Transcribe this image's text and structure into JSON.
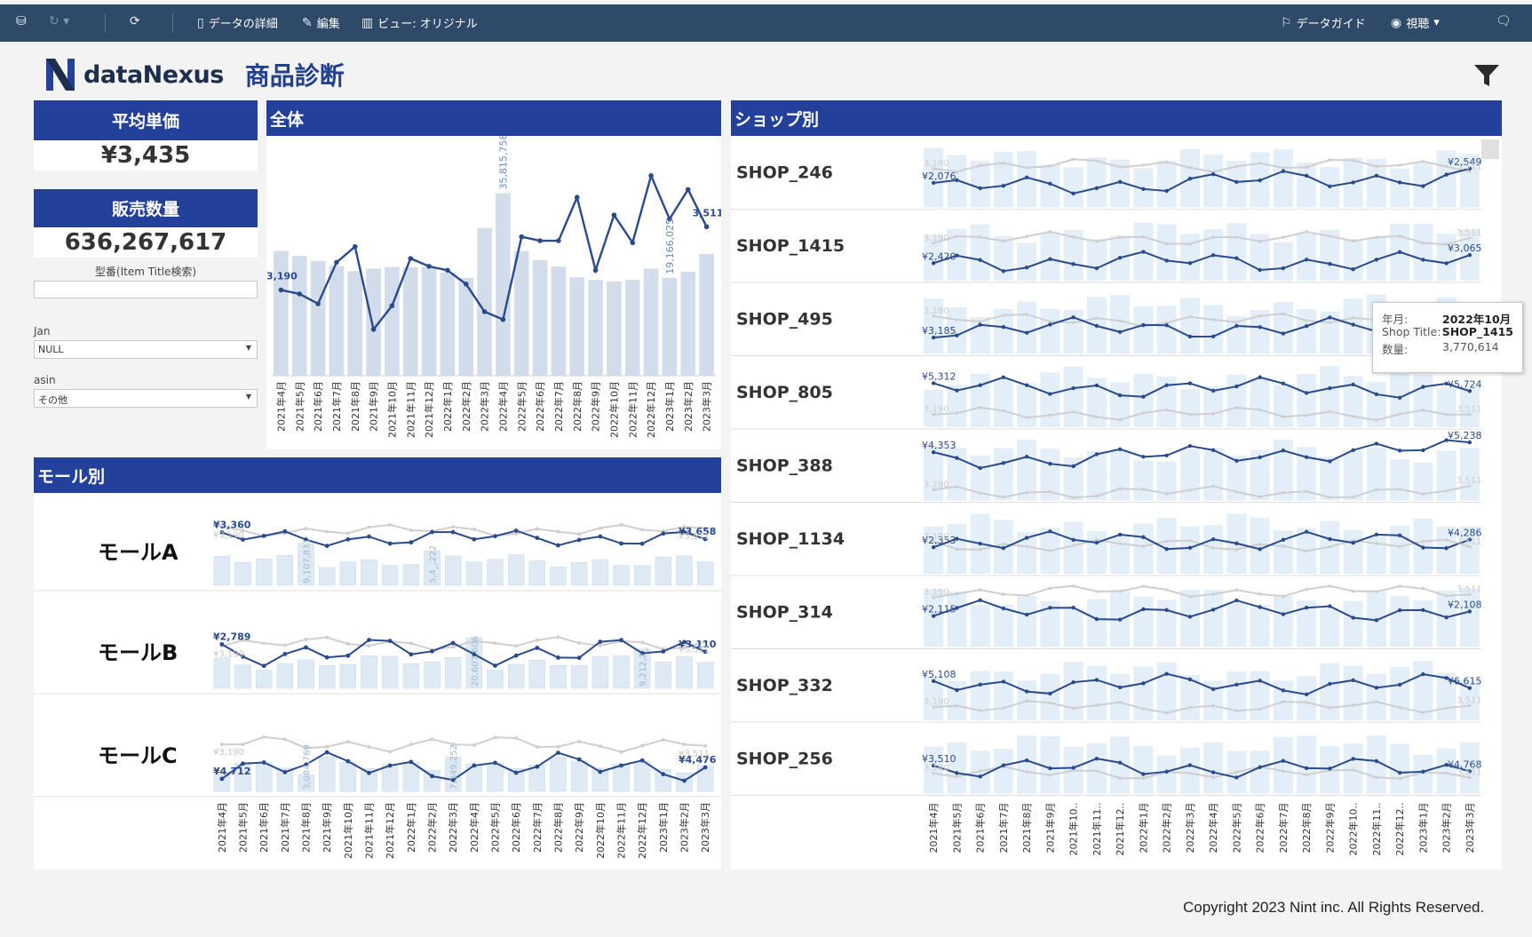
{
  "toolbar": {
    "data_details": "データの詳細",
    "edit": "編集",
    "view": "ビュー: オリジナル",
    "data_guide": "データガイド",
    "watch": "視聴"
  },
  "app": {
    "brand": "dataNexus",
    "page_title": "商品診断"
  },
  "kpi": {
    "avg_price_label": "平均単価",
    "avg_price_value": "¥3,435",
    "qty_label": "販売数量",
    "qty_value": "636,267,617"
  },
  "filters": {
    "search_label": "型番(Item Title検索)",
    "search_value": "",
    "jan_label": "Jan",
    "jan_value": "NULL",
    "asin_label": "asin",
    "asin_value": "その他"
  },
  "sections": {
    "overall": "全体",
    "mall": "モール別",
    "shop": "ショップ別"
  },
  "months": [
    "2021年4月",
    "2021年5月",
    "2021年6月",
    "2021年7月",
    "2021年8月",
    "2021年9月",
    "2021年10月",
    "2021年11月",
    "2021年12月",
    "2022年1月",
    "2022年2月",
    "2022年3月",
    "2022年4月",
    "2022年5月",
    "2022年6月",
    "2022年7月",
    "2022年8月",
    "2022年9月",
    "2022年10月",
    "2022年11月",
    "2022年12月",
    "2023年1月",
    "2023年2月",
    "2023年3月"
  ],
  "shop_months": [
    "2021年4月",
    "2021年5月",
    "2021年6月",
    "2021年7月",
    "2021年8月",
    "2021年9月",
    "2021年10..",
    "2021年11..",
    "2021年12..",
    "2022年1月",
    "2022年2月",
    "2022年3月",
    "2022年4月",
    "2022年5月",
    "2022年6月",
    "2022年7月",
    "2022年8月",
    "2022年9月",
    "2022年10..",
    "2022年11..",
    "2022年12..",
    "2023年1月",
    "2023年2月",
    "2023年3月"
  ],
  "chart_data": [
    {
      "type": "bar",
      "title": "全体",
      "categories_ref": "months",
      "series": [
        {
          "name": "販売数量",
          "values": [
            24.5,
            23.5,
            22.5,
            21.5,
            20.5,
            21,
            21.3,
            21.3,
            21.3,
            20.2,
            19.2,
            29,
            35.8,
            24.5,
            22.7,
            21.4,
            19.3,
            18.8,
            18.5,
            18.8,
            21,
            19.2,
            20.4,
            23.9
          ]
        },
        {
          "name": "平均単価",
          "values": [
            3190,
            3170,
            3120,
            3330,
            3410,
            2990,
            3110,
            3350,
            3310,
            3290,
            3220,
            3080,
            3040,
            3460,
            3440,
            3440,
            3660,
            3290,
            3570,
            3430,
            3770,
            3550,
            3700,
            3511
          ]
        }
      ],
      "labels": {
        "first_price": "3,190",
        "last_price": "3,511",
        "peak_qty": "35,815,758",
        "qty_2023_1": "19,166,025"
      }
    },
    {
      "type": "line",
      "title": "モール別",
      "rows": [
        {
          "name": "モールA",
          "first": "¥3,360",
          "last": "¥3,658",
          "ref_first": "¥3,190",
          "ref_last": "¥3,511",
          "qty_label": "9,107,831",
          "qty_label2": "5,4_,222"
        },
        {
          "name": "モールB",
          "first": "¥2,789",
          "last": "¥3,110",
          "ref_first": "¥3,190",
          "ref_last": "¥3,511",
          "qty_label": "20,607,606",
          "qty_label2": "9,212,2_"
        },
        {
          "name": "モールC",
          "first": "¥4,712",
          "last": "¥4,476",
          "ref_first": "¥3,190",
          "ref_last": "¥3,511",
          "qty_label": "3,084,769",
          "qty_label2": "7,349,252"
        }
      ]
    },
    {
      "type": "line",
      "title": "ショップ別",
      "rows": [
        {
          "name": "SHOP_246",
          "first": "¥2,076",
          "last": "¥2,549",
          "ref_first": "3,190",
          "ref_last": "3,511"
        },
        {
          "name": "SHOP_1415",
          "first": "¥2,420",
          "last": "¥3,065",
          "ref_first": "3,190",
          "ref_last": "3,511"
        },
        {
          "name": "SHOP_495",
          "first": "¥3,185",
          "last": "",
          "ref_first": "3,190",
          "ref_last": ""
        },
        {
          "name": "SHOP_805",
          "first": "¥5,312",
          "last": "¥5,724",
          "ref_first": "3,190",
          "ref_last": "3,511"
        },
        {
          "name": "SHOP_388",
          "first": "¥4,353",
          "last": "¥5,238",
          "ref_first": "3,190",
          "ref_last": "3,511"
        },
        {
          "name": "SHOP_1134",
          "first": "¥2,353",
          "last": "¥4,286",
          "ref_first": "3,190",
          "ref_last": "3,511"
        },
        {
          "name": "SHOP_314",
          "first": "¥2,115",
          "last": "¥2,108",
          "ref_first": "3,190",
          "ref_last": "3,511"
        },
        {
          "name": "SHOP_332",
          "first": "¥5,108",
          "last": "¥6,615",
          "ref_first": "3,190",
          "ref_last": "3,511"
        },
        {
          "name": "SHOP_256",
          "first": "¥3,510",
          "last": "¥4,768",
          "ref_first": "3,190",
          "ref_last": "3,511"
        }
      ]
    }
  ],
  "tooltip": {
    "k1": "年月:",
    "v1": "2022年10月",
    "k2": "Shop Title:",
    "v2": "SHOP_1415",
    "k3": "数量:",
    "v3": "3,770,614"
  },
  "colors": {
    "header": "#23409a",
    "line": "#2a4a8e",
    "bar": "#d3dcea",
    "shop_bar": "#e3eef8",
    "ref_line": "#cfcfcf"
  },
  "copyright": "Copyright 2023 Nint inc. All Rights Reserved."
}
